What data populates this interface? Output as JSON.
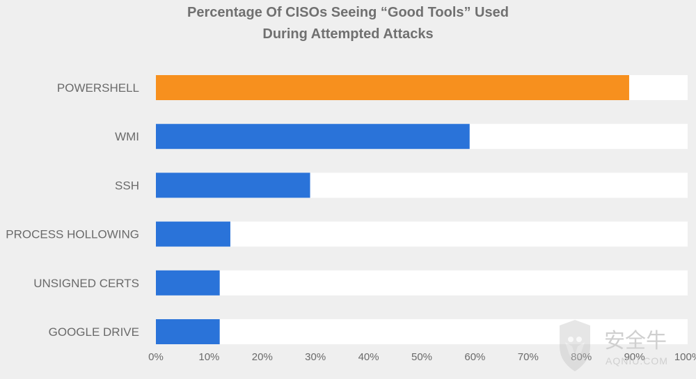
{
  "title_line1": "Percentage Of CISOs Seeing “Good Tools” Used",
  "title_line2": "During Attempted Attacks",
  "watermark": {
    "text": "安全牛",
    "subtext": "AQNIU.COM"
  },
  "colors": {
    "background": "#efefef",
    "track": "#ffffff",
    "highlight": "#f7901e",
    "default_bar": "#2a73d9",
    "label_text": "#6a6a6a"
  },
  "chart_data": {
    "type": "bar",
    "orientation": "horizontal",
    "title": "Percentage Of CISOs Seeing “Good Tools” Used During Attempted Attacks",
    "categories": [
      "POWERSHELL",
      "WMI",
      "SSH",
      "PROCESS HOLLOWING",
      "UNSIGNED CERTS",
      "GOOGLE DRIVE"
    ],
    "values": [
      89,
      59,
      29,
      14,
      12,
      12
    ],
    "highlight_index": 0,
    "xlim": [
      0,
      100
    ],
    "xticks": [
      0,
      10,
      20,
      30,
      40,
      50,
      60,
      70,
      80,
      90,
      100
    ],
    "xtick_labels": [
      "0%",
      "10%",
      "20%",
      "30%",
      "40%",
      "50%",
      "60%",
      "70%",
      "80%",
      "90%",
      "100%"
    ],
    "grid": false,
    "legend": "none"
  }
}
